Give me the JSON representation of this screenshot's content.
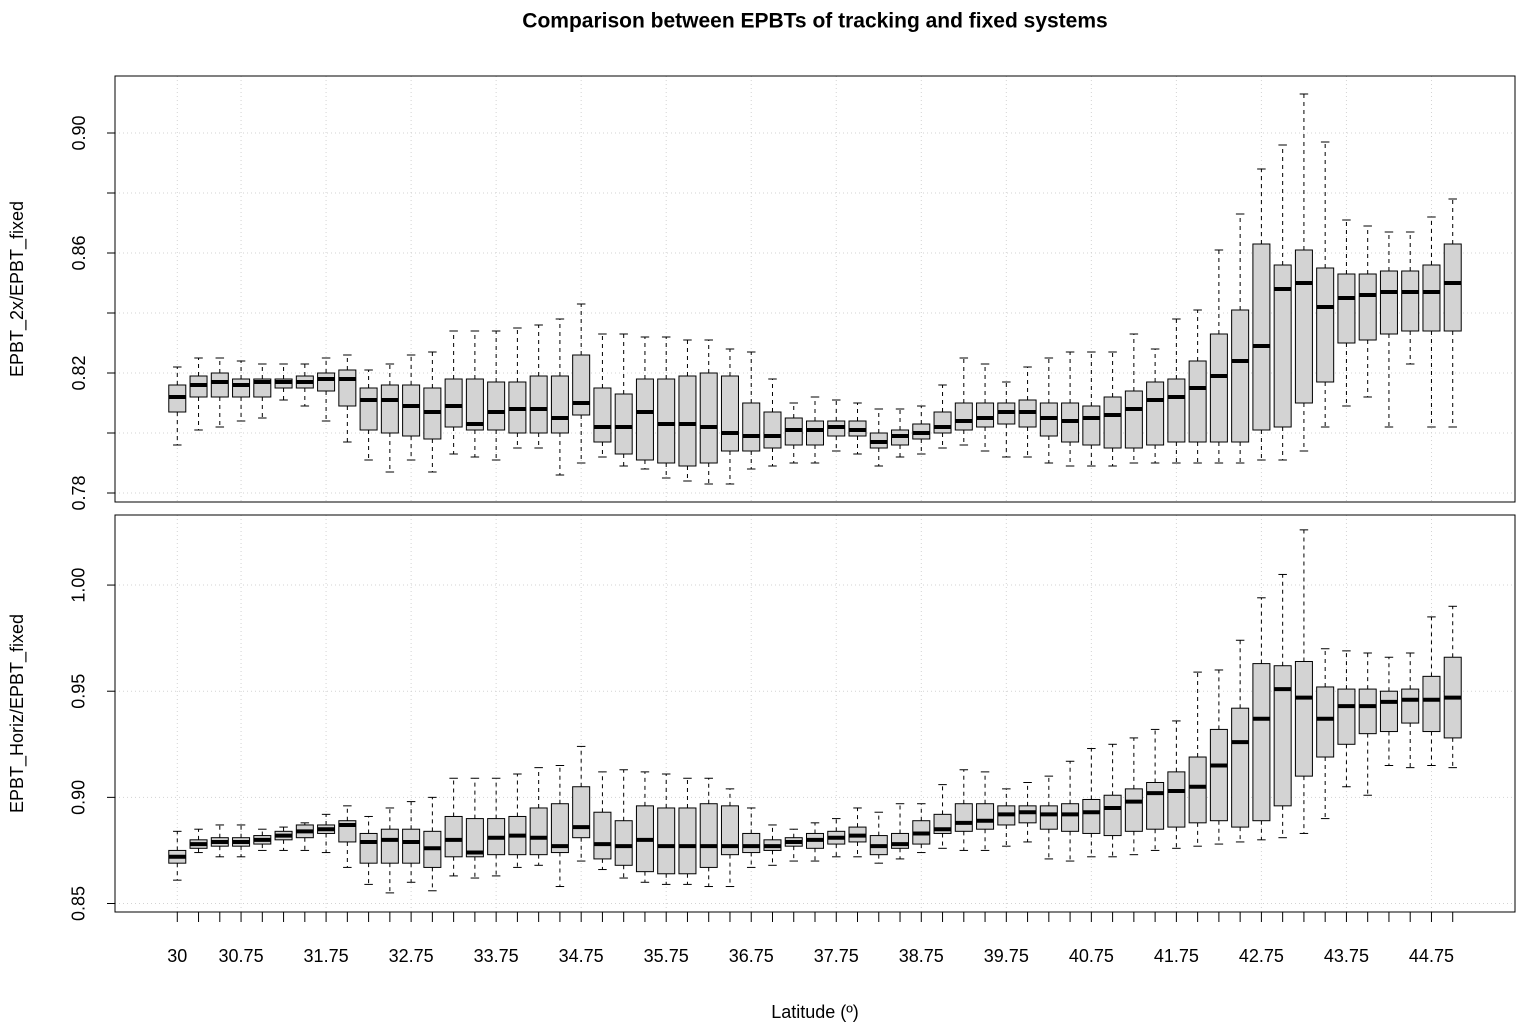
{
  "chart_data": [
    {
      "type": "boxplot",
      "title": "Comparison between EPBTs of tracking and fixed systems",
      "ylabel": "EPBT_2x/EPBT_fixed",
      "color": "#d3d3d3",
      "grid": true,
      "ylim": [
        0.777,
        0.919
      ],
      "yticks": [
        0.78,
        {
          "value": 0.8,
          "label": null
        },
        0.82,
        {
          "value": 0.84,
          "label": null
        },
        0.86,
        {
          "value": 0.88,
          "label": null
        },
        {
          "value": 0.9,
          "label": "0.90"
        }
      ],
      "boxes": {
        "whisker_low": [
          0.796,
          0.801,
          0.802,
          0.804,
          0.805,
          0.811,
          0.809,
          0.804,
          0.797,
          0.791,
          0.787,
          0.791,
          0.787,
          0.793,
          0.792,
          0.791,
          0.795,
          0.795,
          0.786,
          0.79,
          0.792,
          0.789,
          0.788,
          0.785,
          0.784,
          0.783,
          0.783,
          0.788,
          0.789,
          0.79,
          0.79,
          0.794,
          0.793,
          0.789,
          0.792,
          0.793,
          0.795,
          0.796,
          0.794,
          0.792,
          0.792,
          0.79,
          0.789,
          0.789,
          0.789,
          0.79,
          0.79,
          0.79,
          0.79,
          0.79,
          0.79,
          0.791,
          0.791,
          0.794,
          0.802,
          0.809,
          0.812,
          0.802,
          0.823,
          0.802,
          0.802
        ],
        "q1": [
          0.807,
          0.812,
          0.812,
          0.812,
          0.812,
          0.815,
          0.815,
          0.814,
          0.809,
          0.801,
          0.8,
          0.799,
          0.798,
          0.802,
          0.801,
          0.801,
          0.8,
          0.8,
          0.8,
          0.806,
          0.797,
          0.793,
          0.791,
          0.79,
          0.789,
          0.79,
          0.794,
          0.794,
          0.795,
          0.796,
          0.796,
          0.799,
          0.799,
          0.795,
          0.796,
          0.798,
          0.8,
          0.801,
          0.802,
          0.803,
          0.802,
          0.799,
          0.797,
          0.796,
          0.795,
          0.795,
          0.796,
          0.797,
          0.797,
          0.797,
          0.797,
          0.801,
          0.802,
          0.81,
          0.817,
          0.83,
          0.831,
          0.833,
          0.834,
          0.834,
          0.834
        ],
        "median": [
          0.812,
          0.816,
          0.817,
          0.816,
          0.817,
          0.817,
          0.817,
          0.818,
          0.818,
          0.811,
          0.811,
          0.809,
          0.807,
          0.809,
          0.803,
          0.807,
          0.808,
          0.808,
          0.805,
          0.81,
          0.802,
          0.802,
          0.807,
          0.803,
          0.803,
          0.802,
          0.8,
          0.799,
          0.799,
          0.801,
          0.801,
          0.802,
          0.801,
          0.797,
          0.799,
          0.8,
          0.802,
          0.804,
          0.805,
          0.807,
          0.807,
          0.805,
          0.804,
          0.805,
          0.806,
          0.808,
          0.811,
          0.812,
          0.815,
          0.819,
          0.824,
          0.829,
          0.848,
          0.85,
          0.842,
          0.845,
          0.846,
          0.847,
          0.847,
          0.847,
          0.85
        ],
        "q3": [
          0.816,
          0.819,
          0.82,
          0.818,
          0.818,
          0.818,
          0.819,
          0.82,
          0.821,
          0.815,
          0.816,
          0.816,
          0.815,
          0.818,
          0.818,
          0.817,
          0.817,
          0.819,
          0.819,
          0.826,
          0.815,
          0.813,
          0.818,
          0.818,
          0.819,
          0.82,
          0.819,
          0.81,
          0.807,
          0.805,
          0.804,
          0.804,
          0.804,
          0.8,
          0.801,
          0.803,
          0.807,
          0.81,
          0.81,
          0.81,
          0.811,
          0.81,
          0.81,
          0.809,
          0.812,
          0.814,
          0.817,
          0.818,
          0.824,
          0.833,
          0.841,
          0.863,
          0.856,
          0.861,
          0.855,
          0.853,
          0.853,
          0.854,
          0.854,
          0.856,
          0.863
        ],
        "whisker_high": [
          0.822,
          0.825,
          0.825,
          0.824,
          0.823,
          0.823,
          0.823,
          0.825,
          0.826,
          0.821,
          0.823,
          0.826,
          0.827,
          0.834,
          0.834,
          0.834,
          0.835,
          0.836,
          0.838,
          0.843,
          0.833,
          0.833,
          0.832,
          0.832,
          0.831,
          0.831,
          0.828,
          0.827,
          0.818,
          0.81,
          0.812,
          0.811,
          0.81,
          0.808,
          0.808,
          0.809,
          0.816,
          0.825,
          0.823,
          0.817,
          0.822,
          0.825,
          0.827,
          0.827,
          0.827,
          0.833,
          0.828,
          0.838,
          0.841,
          0.861,
          0.873,
          0.888,
          0.896,
          0.913,
          0.897,
          0.871,
          0.869,
          0.867,
          0.867,
          0.872,
          0.878
        ]
      }
    },
    {
      "type": "boxplot",
      "ylabel": "EPBT_Horiz/EPBT_fixed",
      "xlabel": "Latitude (º)",
      "color": "#d3d3d3",
      "grid": true,
      "categories": [
        "30",
        null,
        null,
        "30.75",
        null,
        null,
        null,
        "31.75",
        null,
        null,
        null,
        "32.75",
        null,
        null,
        null,
        "33.75",
        null,
        null,
        null,
        "34.75",
        null,
        null,
        null,
        "35.75",
        null,
        null,
        null,
        "36.75",
        null,
        null,
        null,
        "37.75",
        null,
        null,
        null,
        "38.75",
        null,
        null,
        null,
        "39.75",
        null,
        null,
        null,
        "40.75",
        null,
        null,
        null,
        "41.75",
        null,
        null,
        null,
        "42.75",
        null,
        null,
        null,
        "43.75",
        null,
        null,
        null,
        "44.75",
        null
      ],
      "ylim": [
        0.846,
        1.033
      ],
      "yticks": [
        0.85,
        {
          "value": 0.9,
          "label": "0.90"
        },
        0.95,
        {
          "value": 1,
          "label": "1.00"
        }
      ],
      "boxes": {
        "whisker_low": [
          0.861,
          0.874,
          0.872,
          0.872,
          0.875,
          0.875,
          0.875,
          0.874,
          0.867,
          0.859,
          0.855,
          0.86,
          0.856,
          0.863,
          0.862,
          0.863,
          0.867,
          0.868,
          0.858,
          0.87,
          0.866,
          0.862,
          0.86,
          0.859,
          0.859,
          0.858,
          0.858,
          0.867,
          0.868,
          0.87,
          0.87,
          0.872,
          0.872,
          0.869,
          0.871,
          0.874,
          0.876,
          0.875,
          0.875,
          0.877,
          0.879,
          0.871,
          0.87,
          0.872,
          0.872,
          0.873,
          0.875,
          0.876,
          0.877,
          0.878,
          0.879,
          0.88,
          0.881,
          0.883,
          0.89,
          0.905,
          0.901,
          0.915,
          0.914,
          0.915,
          0.914
        ],
        "q1": [
          0.869,
          0.876,
          0.877,
          0.877,
          0.878,
          0.88,
          0.881,
          0.883,
          0.879,
          0.869,
          0.869,
          0.869,
          0.867,
          0.872,
          0.872,
          0.873,
          0.873,
          0.873,
          0.874,
          0.881,
          0.871,
          0.868,
          0.865,
          0.864,
          0.864,
          0.867,
          0.873,
          0.874,
          0.875,
          0.877,
          0.876,
          0.878,
          0.879,
          0.873,
          0.876,
          0.878,
          0.883,
          0.884,
          0.885,
          0.887,
          0.888,
          0.885,
          0.884,
          0.883,
          0.882,
          0.884,
          0.885,
          0.886,
          0.888,
          0.889,
          0.886,
          0.889,
          0.896,
          0.91,
          0.919,
          0.925,
          0.93,
          0.931,
          0.935,
          0.931,
          0.928
        ],
        "median": [
          0.872,
          0.878,
          0.879,
          0.879,
          0.88,
          0.882,
          0.884,
          0.885,
          0.887,
          0.879,
          0.88,
          0.879,
          0.876,
          0.88,
          0.874,
          0.881,
          0.882,
          0.881,
          0.877,
          0.886,
          0.878,
          0.877,
          0.88,
          0.877,
          0.877,
          0.877,
          0.877,
          0.877,
          0.877,
          0.879,
          0.88,
          0.881,
          0.882,
          0.877,
          0.878,
          0.883,
          0.885,
          0.888,
          0.889,
          0.892,
          0.893,
          0.892,
          0.892,
          0.893,
          0.895,
          0.898,
          0.902,
          0.903,
          0.905,
          0.915,
          0.926,
          0.937,
          0.951,
          0.947,
          0.937,
          0.943,
          0.943,
          0.945,
          0.946,
          0.946,
          0.947
        ],
        "q3": [
          0.875,
          0.88,
          0.881,
          0.881,
          0.882,
          0.884,
          0.887,
          0.887,
          0.889,
          0.883,
          0.885,
          0.885,
          0.884,
          0.891,
          0.89,
          0.89,
          0.891,
          0.895,
          0.897,
          0.905,
          0.893,
          0.889,
          0.896,
          0.895,
          0.895,
          0.897,
          0.896,
          0.883,
          0.88,
          0.881,
          0.883,
          0.884,
          0.886,
          0.882,
          0.883,
          0.889,
          0.892,
          0.897,
          0.897,
          0.896,
          0.896,
          0.896,
          0.897,
          0.899,
          0.901,
          0.904,
          0.907,
          0.912,
          0.919,
          0.932,
          0.942,
          0.963,
          0.962,
          0.964,
          0.952,
          0.951,
          0.951,
          0.95,
          0.951,
          0.957,
          0.966
        ],
        "whisker_high": [
          0.884,
          0.885,
          0.887,
          0.887,
          0.885,
          0.886,
          0.888,
          0.892,
          0.896,
          0.891,
          0.895,
          0.898,
          0.9,
          0.909,
          0.909,
          0.909,
          0.911,
          0.914,
          0.915,
          0.924,
          0.912,
          0.913,
          0.912,
          0.911,
          0.909,
          0.909,
          0.904,
          0.895,
          0.887,
          0.885,
          0.888,
          0.89,
          0.895,
          0.893,
          0.897,
          0.897,
          0.906,
          0.913,
          0.912,
          0.904,
          0.907,
          0.91,
          0.917,
          0.923,
          0.925,
          0.928,
          0.932,
          0.936,
          0.959,
          0.96,
          0.974,
          0.994,
          1.005,
          1.026,
          0.97,
          0.969,
          0.968,
          0.966,
          0.968,
          0.985,
          0.99
        ]
      }
    }
  ]
}
